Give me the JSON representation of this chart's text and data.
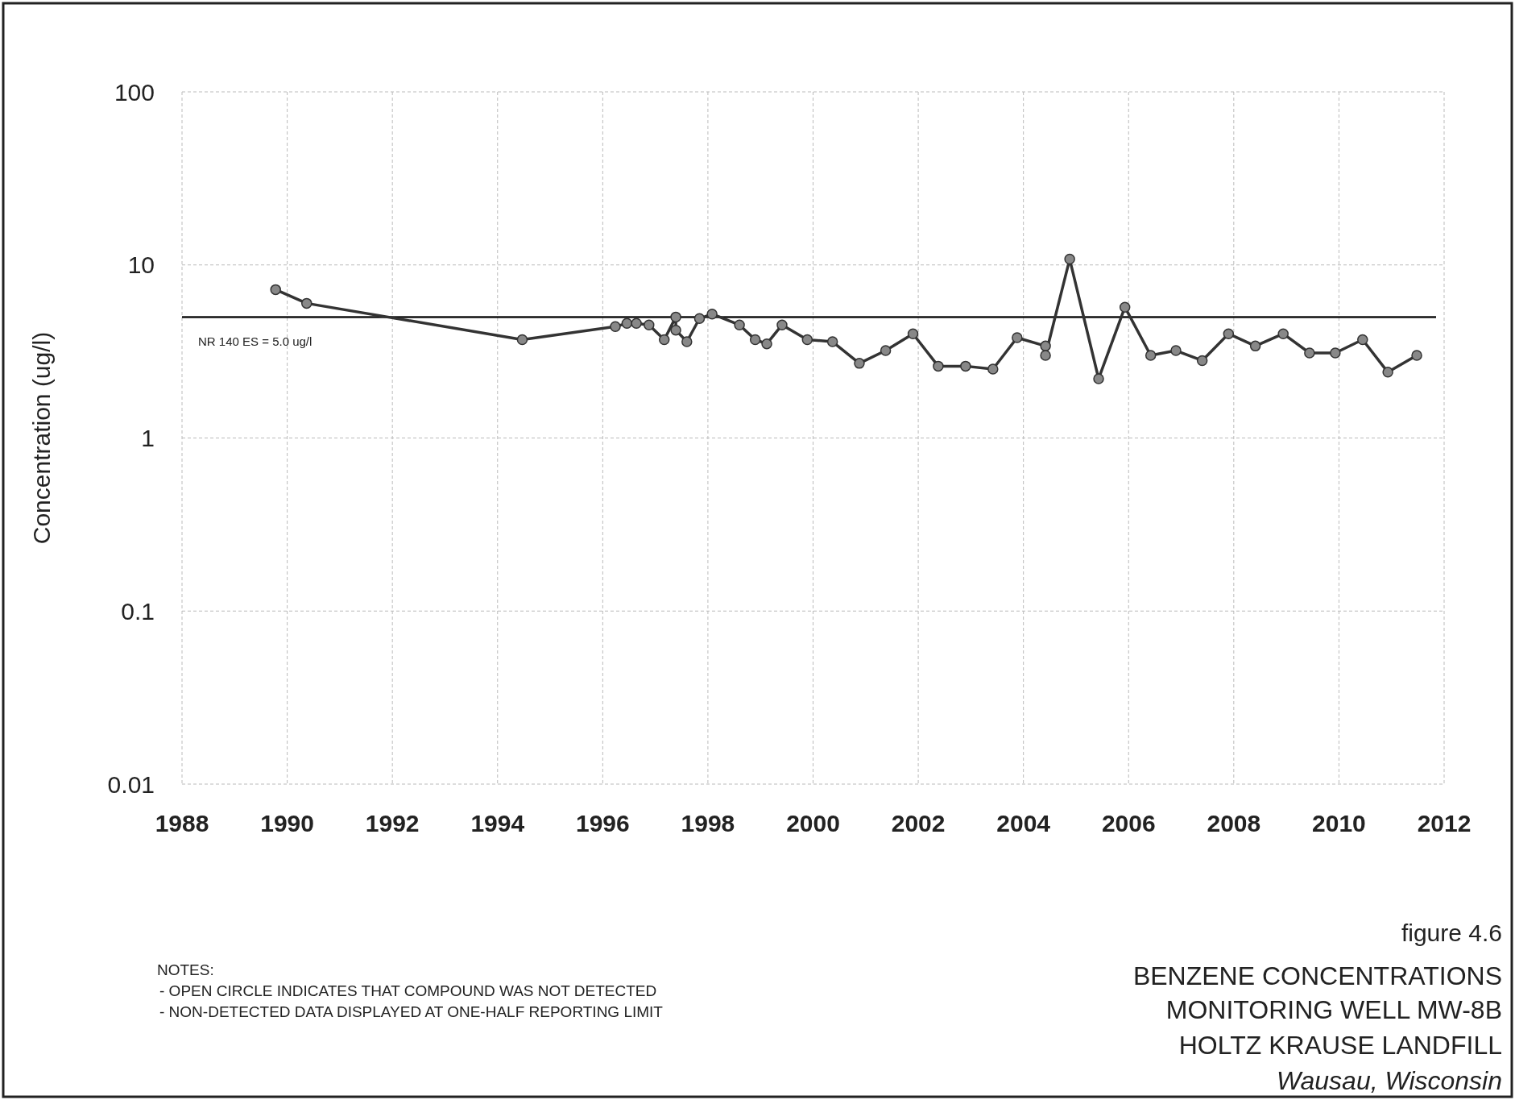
{
  "chart_data": {
    "type": "line",
    "title": "BENZENE CONCENTRATIONS",
    "ylabel": "Concentration (ug/l)",
    "annotations": [
      "figure 4.6",
      "MONITORING WELL MW-8B",
      "HOLTZ KRAUSE LANDFILL",
      "Wausau, Wisconsin",
      "NOTES:",
      "- OPEN CIRCLE INDICATES THAT COMPOUND WAS NOT DETECTED",
      "- NON-DETECTED DATA DISPLAYED AT ONE-HALF REPORTING LIMIT"
    ],
    "x": [
      1989.78,
      1990.37,
      1994.47,
      1996.24,
      1996.46,
      1996.64,
      1996.88,
      1997.17,
      1997.39,
      1997.39,
      1997.6,
      1997.84,
      1998.08,
      1998.6,
      1998.9,
      1999.12,
      1999.41,
      1999.89,
      2000.37,
      2000.88,
      2001.38,
      2001.9,
      2002.38,
      2002.9,
      2003.42,
      2003.88,
      2004.42,
      2004.42,
      2004.88,
      2005.43,
      2005.93,
      2006.42,
      2006.9,
      2007.4,
      2007.9,
      2008.41,
      2008.94,
      2009.44,
      2009.93,
      2010.45,
      2010.93,
      2011.48
    ],
    "series": [
      {
        "color": "#333333",
        "values": [
          7.2,
          6.0,
          3.7,
          4.4,
          4.6,
          4.6,
          4.5,
          3.7,
          5.0,
          4.2,
          3.6,
          4.9,
          5.2,
          4.5,
          3.7,
          3.5,
          4.5,
          3.7,
          3.6,
          2.7,
          3.2,
          4.0,
          2.6,
          2.6,
          2.5,
          3.8,
          3.4,
          3.0,
          10.8,
          2.2,
          5.7,
          3.0,
          3.2,
          2.8,
          4.0,
          3.4,
          4.0,
          3.1,
          3.1,
          3.7,
          2.4,
          3.0
        ]
      }
    ],
    "xlim": [
      1988,
      2012
    ],
    "xticks": [
      1988,
      1990,
      1992,
      1994,
      1996,
      1998,
      2000,
      2002,
      2004,
      2006,
      2008,
      2010,
      2012
    ],
    "ylim": [
      0.01,
      100
    ],
    "yticks": [
      0.01,
      0.1,
      1,
      10,
      100
    ],
    "log": "y",
    "grid": true,
    "marker": "circle",
    "line_style": "solid",
    "ref_lines": [
      {
        "axis": "y",
        "value": 5.0,
        "label": "NR 140 ES = 5.0 ug/l",
        "color": "#111111"
      }
    ]
  }
}
